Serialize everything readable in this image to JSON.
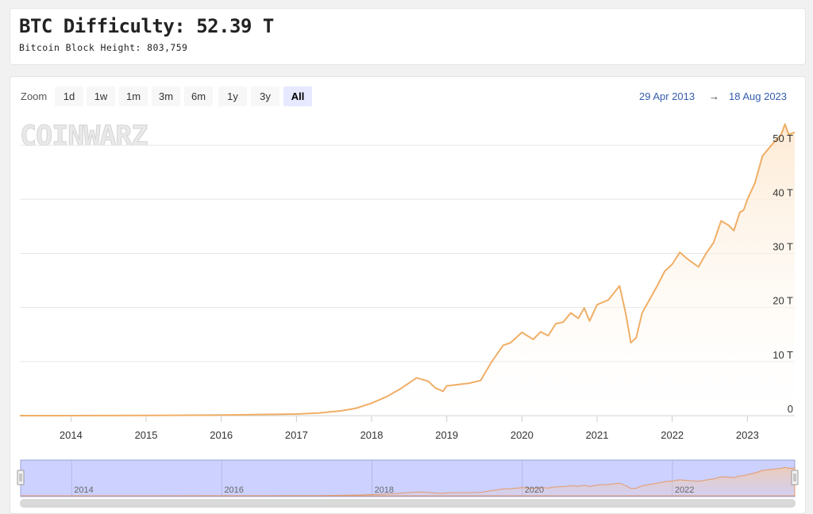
{
  "header": {
    "title": "BTC Difficulty: 52.39 T",
    "subtitle": "Bitcoin Block Height: 803,759"
  },
  "toolbar": {
    "zoom_label": "Zoom",
    "zoom_buttons": [
      "1d",
      "1w",
      "1m",
      "3m",
      "6m",
      "1y",
      "3y",
      "All"
    ],
    "active_zoom": "All",
    "range_from": "29 Apr 2013",
    "range_arrow": "→",
    "range_to": "18 Aug 2023"
  },
  "watermark": "COINWARZ",
  "colors": {
    "line": "#f0ae66",
    "area_top": "#fde8d0",
    "grid": "#e6e6e6",
    "navigator_bg": "#ccd1ff",
    "accent": "#335cad"
  },
  "chart_data": {
    "type": "area",
    "title": "BTC Difficulty: 52.39 T",
    "xlabel": "",
    "ylabel": "",
    "x_tick_labels": [
      "2014",
      "2015",
      "2016",
      "2017",
      "2018",
      "2019",
      "2020",
      "2021",
      "2022",
      "2023"
    ],
    "y_tick_labels": [
      "0",
      "10 T",
      "20 T",
      "30 T",
      "40 T",
      "50 T"
    ],
    "y_ticks": [
      0,
      10,
      20,
      30,
      40,
      50
    ],
    "ylim": [
      0,
      55
    ],
    "xlim": [
      2013.32,
      2023.63
    ],
    "navigator_labels": [
      "2014",
      "2016",
      "2018",
      "2020",
      "2022"
    ],
    "grid": true,
    "legend": "none",
    "series": [
      {
        "x": [
          2013.32,
          2014.0,
          2015.0,
          2016.0,
          2016.5,
          2017.0,
          2017.3,
          2017.6,
          2017.8,
          2018.0,
          2018.2,
          2018.4,
          2018.6,
          2018.75,
          2018.85,
          2018.95,
          2019.0,
          2019.3,
          2019.45,
          2019.6,
          2019.75,
          2019.85,
          2020.0,
          2020.15,
          2020.25,
          2020.35,
          2020.45,
          2020.55,
          2020.65,
          2020.75,
          2020.83,
          2020.9,
          2021.0,
          2021.15,
          2021.3,
          2021.38,
          2021.45,
          2021.52,
          2021.6,
          2021.7,
          2021.8,
          2021.9,
          2022.0,
          2022.1,
          2022.2,
          2022.35,
          2022.45,
          2022.55,
          2022.65,
          2022.75,
          2022.82,
          2022.9,
          2022.95,
          2023.0,
          2023.1,
          2023.2,
          2023.35,
          2023.45,
          2023.5,
          2023.55,
          2023.63
        ],
        "y": [
          0.0,
          0.002,
          0.05,
          0.1,
          0.2,
          0.3,
          0.5,
          0.9,
          1.4,
          2.3,
          3.5,
          5.1,
          7.0,
          6.4,
          5.1,
          4.5,
          5.5,
          6.0,
          6.5,
          10.0,
          13.0,
          13.5,
          15.4,
          14.1,
          15.5,
          14.8,
          17.0,
          17.3,
          19.0,
          18.0,
          19.9,
          17.5,
          20.5,
          21.4,
          24.0,
          19.0,
          13.5,
          14.4,
          19.0,
          21.5,
          24.0,
          26.7,
          28.0,
          30.2,
          29.0,
          27.5,
          30.0,
          32.0,
          36.0,
          35.2,
          34.2,
          37.6,
          38.0,
          40.0,
          43.0,
          48.0,
          50.5,
          52.0,
          53.9,
          52.0,
          52.39
        ]
      }
    ]
  }
}
